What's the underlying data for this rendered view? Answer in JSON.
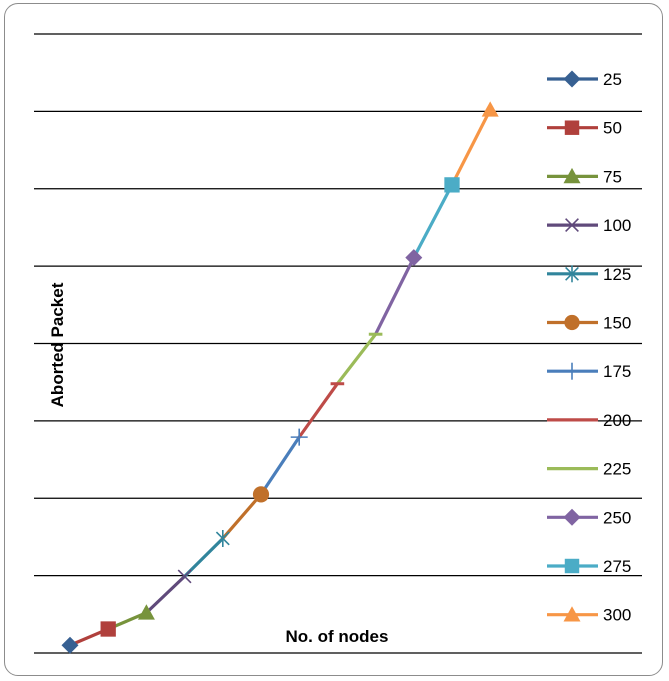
{
  "chart_data": {
    "type": "line",
    "xlabel": "No. of nodes",
    "ylabel": "Aborted Packet",
    "ylim": [
      0,
      8
    ],
    "grid": true,
    "legend_position": "right",
    "categories": [
      "25",
      "50",
      "75",
      "100",
      "125",
      "150",
      "175",
      "200",
      "225",
      "250",
      "275",
      "300"
    ],
    "values": [
      0.1,
      0.31,
      0.52,
      0.99,
      1.48,
      2.05,
      2.79,
      3.48,
      4.12,
      5.11,
      6.05,
      7.02
    ],
    "series": [
      {
        "name": "25",
        "color": "#376092",
        "marker": "diamond"
      },
      {
        "name": "50",
        "color": "#b0403c",
        "marker": "square"
      },
      {
        "name": "75",
        "color": "#77933c",
        "marker": "triangle"
      },
      {
        "name": "100",
        "color": "#604a7b",
        "marker": "x"
      },
      {
        "name": "125",
        "color": "#31859c",
        "marker": "star"
      },
      {
        "name": "150",
        "color": "#c0702a",
        "marker": "circle"
      },
      {
        "name": "175",
        "color": "#4a7ebb",
        "marker": "plus"
      },
      {
        "name": "200",
        "color": "#be4b48",
        "marker": "dash"
      },
      {
        "name": "225",
        "color": "#9bbb59",
        "marker": "dash"
      },
      {
        "name": "250",
        "color": "#8064a2",
        "marker": "diamond"
      },
      {
        "name": "275",
        "color": "#4bacc6",
        "marker": "square"
      },
      {
        "name": "300",
        "color": "#f79646",
        "marker": "triangle"
      }
    ]
  }
}
